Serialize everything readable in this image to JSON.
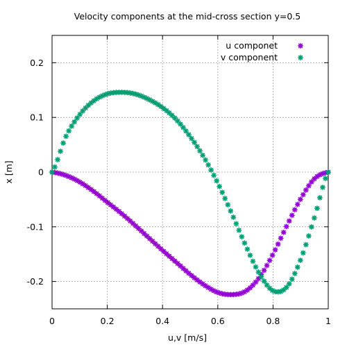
{
  "chart_data": {
    "type": "scatter",
    "title": "Velocity components at the mid-cross section y=0.5",
    "xlabel": "u,v [m/s]",
    "ylabel": "x [m]",
    "xlim": [
      0,
      1
    ],
    "ylim": [
      -0.25,
      0.25
    ],
    "xticks": [
      0,
      0.2,
      0.4,
      0.6,
      0.8,
      1
    ],
    "xtick_labels": [
      "0",
      "0.2",
      "0.4",
      "0.6",
      "0.8",
      "1"
    ],
    "yticks": [
      -0.2,
      -0.1,
      0,
      0.1,
      0.2
    ],
    "ytick_labels": [
      "-0.2",
      "-0.1",
      "0",
      "0.1",
      "0.2"
    ],
    "grid": true,
    "legend_position": "top-right",
    "marker": "star",
    "series": [
      {
        "name": "u componet",
        "color": "#9400d3",
        "x": [
          0,
          0.05,
          0.1,
          0.15,
          0.2,
          0.25,
          0.3,
          0.35,
          0.4,
          0.45,
          0.5,
          0.55,
          0.6,
          0.65,
          0.7,
          0.75,
          0.8,
          0.85,
          0.9,
          0.95,
          1.0
        ],
        "y": [
          0.0,
          -0.006,
          -0.018,
          -0.035,
          -0.055,
          -0.075,
          -0.097,
          -0.12,
          -0.143,
          -0.165,
          -0.187,
          -0.206,
          -0.22,
          -0.224,
          -0.218,
          -0.193,
          -0.15,
          -0.098,
          -0.049,
          -0.012,
          0.0
        ]
      },
      {
        "name": "v component",
        "color": "#009e73",
        "x": [
          0,
          0.05,
          0.1,
          0.15,
          0.2,
          0.25,
          0.3,
          0.35,
          0.4,
          0.45,
          0.5,
          0.55,
          0.6,
          0.65,
          0.7,
          0.75,
          0.8,
          0.85,
          0.9,
          0.95,
          1.0
        ],
        "y": [
          0.0,
          0.065,
          0.105,
          0.13,
          0.143,
          0.146,
          0.143,
          0.133,
          0.118,
          0.096,
          0.065,
          0.027,
          -0.02,
          -0.075,
          -0.133,
          -0.185,
          -0.217,
          -0.21,
          -0.16,
          -0.083,
          0.0
        ]
      }
    ]
  }
}
